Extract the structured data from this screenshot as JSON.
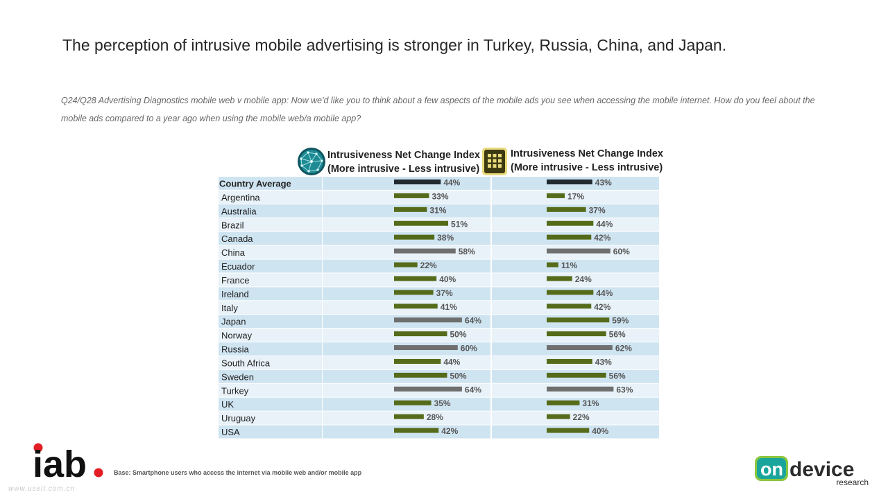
{
  "slide": {
    "title": "The perception of intrusive mobile advertising is stronger in Turkey, Russia, China, and Japan.",
    "question": "Q24/Q28 Advertising Diagnostics mobile web v mobile app: Now we'd like you to think about a few aspects of the mobile ads you see when accessing the mobile internet. How do you feel about the mobile ads compared to a year ago when using the mobile web/a mobile app?",
    "base_note": "Base: Smartphone users who access the internet via mobile web and/or mobile app",
    "watermark": "www.useit.com.cn"
  },
  "logos": {
    "iab_text": "iab",
    "ondevice_on": "on",
    "ondevice_device": "device",
    "ondevice_research": "research"
  },
  "headers": {
    "web": {
      "line1": "Intrusiveness Net Change Index",
      "line2": "(More intrusive - Less intrusive)",
      "icon": "globe-icon"
    },
    "app": {
      "line1": "Intrusiveness Net Change Index",
      "line2": "(More intrusive - Less intrusive)",
      "icon": "app-grid-icon"
    }
  },
  "colors": {
    "average_bar": "#1f2a30",
    "normal_bar": "#556b1a",
    "highlight_bar": "#6f6f6f",
    "row_dark": "#cfe4f1",
    "row_light": "#e8f2f8"
  },
  "chart_data": {
    "type": "bar",
    "orientation": "horizontal",
    "categories": [
      "Country Average",
      "Argentina",
      "Australia",
      "Brazil",
      "Canada",
      "China",
      "Ecuador",
      "France",
      "Ireland",
      "Italy",
      "Japan",
      "Norway",
      "Russia",
      "South Africa",
      "Sweden",
      "Turkey",
      "UK",
      "Uruguay",
      "USA"
    ],
    "series": [
      {
        "name": "Mobile web",
        "values": [
          44,
          33,
          31,
          51,
          38,
          58,
          22,
          40,
          37,
          41,
          64,
          50,
          60,
          44,
          50,
          64,
          35,
          28,
          42
        ],
        "highlight": [
          "China",
          "Japan",
          "Russia",
          "Turkey"
        ]
      },
      {
        "name": "Mobile app",
        "values": [
          43,
          17,
          37,
          44,
          42,
          60,
          11,
          24,
          44,
          42,
          59,
          56,
          62,
          43,
          56,
          63,
          31,
          22,
          40
        ],
        "highlight": [
          "China",
          "Russia",
          "Turkey"
        ]
      }
    ],
    "value_format": "{v}%",
    "xlim": [
      0,
      100
    ]
  }
}
